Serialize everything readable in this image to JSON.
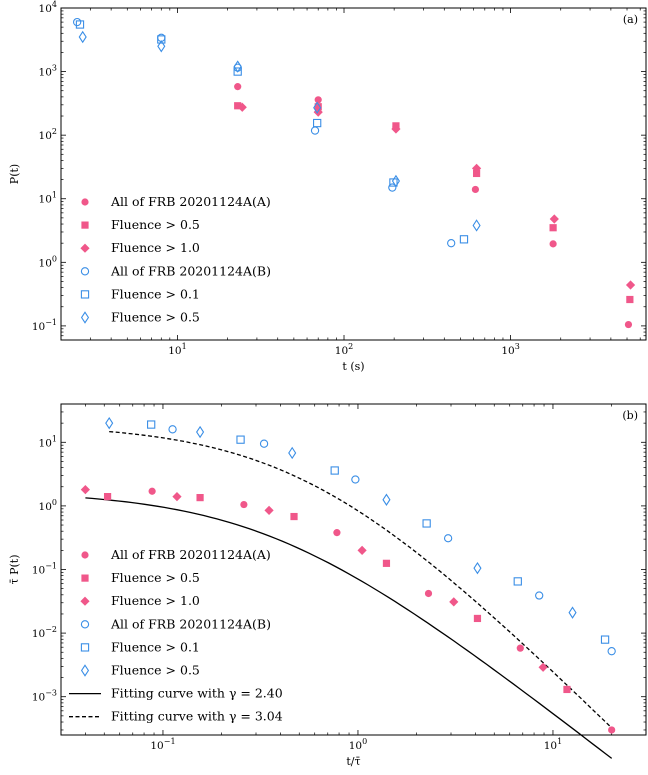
{
  "chart_data": [
    {
      "type": "scatter",
      "panel_label": "(a)",
      "xlabel": "t (s)",
      "ylabel": "P(t)",
      "xscale": "log",
      "yscale": "log",
      "xlim": [
        2,
        6500
      ],
      "ylim": [
        0.06,
        10000
      ],
      "x_ticks": [
        {
          "value": 10,
          "base": "10",
          "exp": "1"
        },
        {
          "value": 100,
          "base": "10",
          "exp": "2"
        },
        {
          "value": 1000,
          "base": "10",
          "exp": "3"
        }
      ],
      "y_ticks": [
        {
          "value": 0.1,
          "base": "10",
          "exp": "−1"
        },
        {
          "value": 1,
          "base": "10",
          "exp": "0"
        },
        {
          "value": 10,
          "base": "10",
          "exp": "1"
        },
        {
          "value": 100,
          "base": "10",
          "exp": "2"
        },
        {
          "value": 1000,
          "base": "10",
          "exp": "3"
        },
        {
          "value": 10000,
          "base": "10",
          "exp": "4"
        }
      ],
      "legend_position": "lower-left",
      "series": [
        {
          "name": "All of FRB 20201124A(A)",
          "marker": "circle",
          "filled": true,
          "color": "#f0578a",
          "points": [
            [
              23,
              580
            ],
            [
              70,
              360
            ],
            [
              205,
              135
            ],
            [
              615,
              14
            ],
            [
              1800,
              1.95
            ],
            [
              5100,
              0.105
            ]
          ]
        },
        {
          "name": "Fluence > 0.5",
          "marker": "square",
          "filled": true,
          "color": "#f0578a",
          "points": [
            [
              23,
              290
            ],
            [
              70,
              280
            ],
            [
              205,
              140
            ],
            [
              625,
              25
            ],
            [
              1800,
              3.5
            ],
            [
              5200,
              0.26
            ]
          ]
        },
        {
          "name": "Fluence > 1.0",
          "marker": "diamond",
          "filled": true,
          "color": "#f0578a",
          "points": [
            [
              24.5,
              275
            ],
            [
              70,
              230
            ],
            [
              205,
              125
            ],
            [
              625,
              30
            ],
            [
              1830,
              4.8
            ],
            [
              5250,
              0.44
            ]
          ]
        },
        {
          "name": "All of FRB 20201124A(B)",
          "marker": "circle",
          "filled": false,
          "color": "#3a8ee6",
          "points": [
            [
              2.5,
              6000
            ],
            [
              8,
              3400
            ],
            [
              23,
              1150
            ],
            [
              67,
              118
            ],
            [
              195,
              15
            ],
            [
              440,
              2.0
            ]
          ]
        },
        {
          "name": "Fluence > 0.1",
          "marker": "square",
          "filled": false,
          "color": "#3a8ee6",
          "points": [
            [
              2.6,
              5500
            ],
            [
              8,
              3200
            ],
            [
              23,
              1000
            ],
            [
              69,
              155
            ],
            [
              198,
              18
            ],
            [
              525,
              2.3
            ]
          ]
        },
        {
          "name": "Fluence > 0.5",
          "marker": "diamond",
          "filled": false,
          "color": "#3a8ee6",
          "points": [
            [
              2.7,
              3500
            ],
            [
              8,
              2500
            ],
            [
              23,
              1200
            ],
            [
              69,
              270
            ],
            [
              205,
              19
            ],
            [
              625,
              3.8
            ]
          ]
        }
      ]
    },
    {
      "type": "scatter",
      "panel_label": "(b)",
      "xlabel": "t/τ̄",
      "ylabel": "τ̄ P(t)",
      "xscale": "log",
      "yscale": "log",
      "xlim": [
        0.03,
        30
      ],
      "ylim": [
        0.00025,
        40
      ],
      "x_ticks": [
        {
          "value": 0.1,
          "base": "10",
          "exp": "−1"
        },
        {
          "value": 1,
          "base": "10",
          "exp": "0"
        },
        {
          "value": 10,
          "base": "10",
          "exp": "1"
        }
      ],
      "y_ticks": [
        {
          "value": 0.001,
          "base": "10",
          "exp": "−3"
        },
        {
          "value": 0.01,
          "base": "10",
          "exp": "−2"
        },
        {
          "value": 0.1,
          "base": "10",
          "exp": "−1"
        },
        {
          "value": 1,
          "base": "10",
          "exp": "0"
        },
        {
          "value": 10,
          "base": "10",
          "exp": "1"
        }
      ],
      "legend_position": "lower-left",
      "series": [
        {
          "name": "All of FRB 20201124A(A)",
          "marker": "circle",
          "filled": true,
          "color": "#f0578a",
          "points": [
            [
              0.088,
              1.7
            ],
            [
              0.26,
              1.05
            ],
            [
              0.78,
              0.38
            ],
            [
              2.3,
              0.042
            ],
            [
              6.8,
              0.0058
            ],
            [
              20,
              0.0003
            ]
          ]
        },
        {
          "name": "Fluence > 0.5",
          "marker": "square",
          "filled": true,
          "color": "#f0578a",
          "points": [
            [
              0.052,
              1.4
            ],
            [
              0.155,
              1.35
            ],
            [
              0.47,
              0.68
            ],
            [
              1.4,
              0.125
            ],
            [
              4.1,
              0.017
            ],
            [
              11.8,
              0.0013
            ]
          ]
        },
        {
          "name": "Fluence > 1.0",
          "marker": "diamond",
          "filled": true,
          "color": "#f0578a",
          "points": [
            [
              0.04,
              1.8
            ],
            [
              0.118,
              1.4
            ],
            [
              0.35,
              0.85
            ],
            [
              1.05,
              0.2
            ],
            [
              3.1,
              0.031
            ],
            [
              8.9,
              0.0029
            ]
          ]
        },
        {
          "name": "All of FRB 20201124A(B)",
          "marker": "circle",
          "filled": false,
          "color": "#3a8ee6",
          "points": [
            [
              0.112,
              16
            ],
            [
              0.33,
              9.5
            ],
            [
              0.97,
              2.6
            ],
            [
              2.9,
              0.31
            ],
            [
              8.5,
              0.039
            ],
            [
              20,
              0.0052
            ]
          ]
        },
        {
          "name": "Fluence > 0.1",
          "marker": "square",
          "filled": false,
          "color": "#3a8ee6",
          "points": [
            [
              0.087,
              19
            ],
            [
              0.25,
              11
            ],
            [
              0.76,
              3.6
            ],
            [
              2.25,
              0.53
            ],
            [
              6.6,
              0.065
            ],
            [
              18.5,
              0.0079
            ]
          ]
        },
        {
          "name": "Fluence > 0.5",
          "marker": "diamond",
          "filled": false,
          "color": "#3a8ee6",
          "points": [
            [
              0.053,
              20
            ],
            [
              0.155,
              14.5
            ],
            [
              0.46,
              6.8
            ],
            [
              1.4,
              1.25
            ],
            [
              4.1,
              0.105
            ],
            [
              12.6,
              0.021
            ]
          ]
        }
      ],
      "fits": [
        {
          "name": "Fitting curve with γ = 2.40",
          "style": "solid",
          "color": "#000000",
          "gamma": 2.4,
          "amplitude": 1.72,
          "scale": 0.36,
          "x_range": [
            0.04,
            20
          ]
        },
        {
          "name": "Fitting curve with γ = 3.04",
          "style": "dashed",
          "color": "#000000",
          "gamma": 3.04,
          "amplitude": 19.5,
          "scale": 0.55,
          "x_range": [
            0.053,
            20
          ]
        }
      ]
    }
  ]
}
